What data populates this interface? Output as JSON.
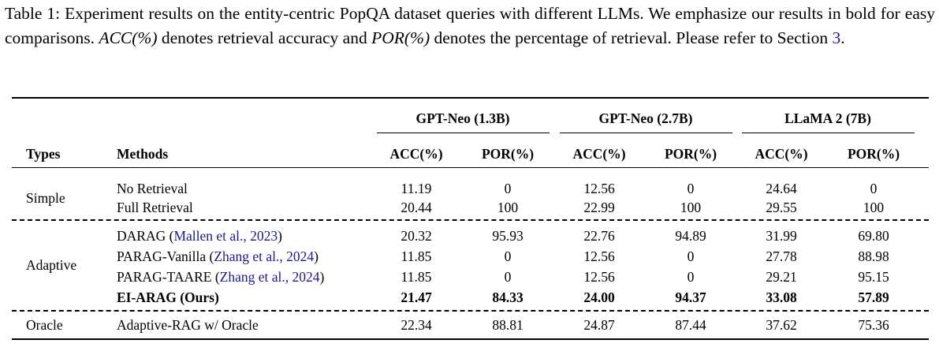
{
  "caption": {
    "label": "Table 1:",
    "text1": " Experiment results on the entity-centric PopQA dataset queries with different LLMs. We emphasize our results in bold for easy comparisons. ",
    "acc_term": "ACC(%)",
    "text2": " denotes retrieval accuracy and ",
    "por_term": "POR(%)",
    "text3": " denotes the percentage of retrieval. Please refer to Section ",
    "section_ref": "3",
    "text4": "."
  },
  "table": {
    "model_groups": [
      "GPT-Neo (1.3B)",
      "GPT-Neo (2.7B)",
      "LLaMA 2 (7B)"
    ],
    "col_types": "Types",
    "col_methods": "Methods",
    "metrics": [
      "ACC(%)",
      "POR(%)",
      "ACC(%)",
      "POR(%)",
      "ACC(%)",
      "POR(%)"
    ],
    "groups": [
      {
        "type": "Simple",
        "rows": [
          {
            "method": "No Retrieval",
            "cite": "",
            "bold": false,
            "values": [
              "11.19",
              "0",
              "12.56",
              "0",
              "24.64",
              "0"
            ]
          },
          {
            "method": "Full Retrieval",
            "cite": "",
            "bold": false,
            "values": [
              "20.44",
              "100",
              "22.99",
              "100",
              "29.55",
              "100"
            ]
          }
        ]
      },
      {
        "type": "Adaptive",
        "rows": [
          {
            "method": "DARAG (",
            "cite": "Mallen et al., 2023",
            "close": ")",
            "bold": false,
            "values": [
              "20.32",
              "95.93",
              "22.76",
              "94.89",
              "31.99",
              "69.80"
            ]
          },
          {
            "method": "PARAG-Vanilla (",
            "cite": "Zhang et al., 2024",
            "close": ")",
            "bold": false,
            "values": [
              "11.85",
              "0",
              "12.56",
              "0",
              "27.78",
              "88.98"
            ]
          },
          {
            "method": "PARAG-TAARE (",
            "cite": "Zhang et al., 2024",
            "close": ")",
            "bold": false,
            "values": [
              "11.85",
              "0",
              "12.56",
              "0",
              "29.21",
              "95.15"
            ]
          },
          {
            "method": "EI-ARAG (Ours)",
            "cite": "",
            "bold": true,
            "values": [
              "21.47",
              "84.33",
              "24.00",
              "94.37",
              "33.08",
              "57.89"
            ]
          }
        ]
      },
      {
        "type": "Oracle",
        "rows": [
          {
            "method": "Adaptive-RAG w/ Oracle",
            "cite": "",
            "bold": false,
            "values": [
              "22.34",
              "88.81",
              "24.87",
              "87.44",
              "37.62",
              "75.36"
            ]
          }
        ]
      }
    ]
  }
}
